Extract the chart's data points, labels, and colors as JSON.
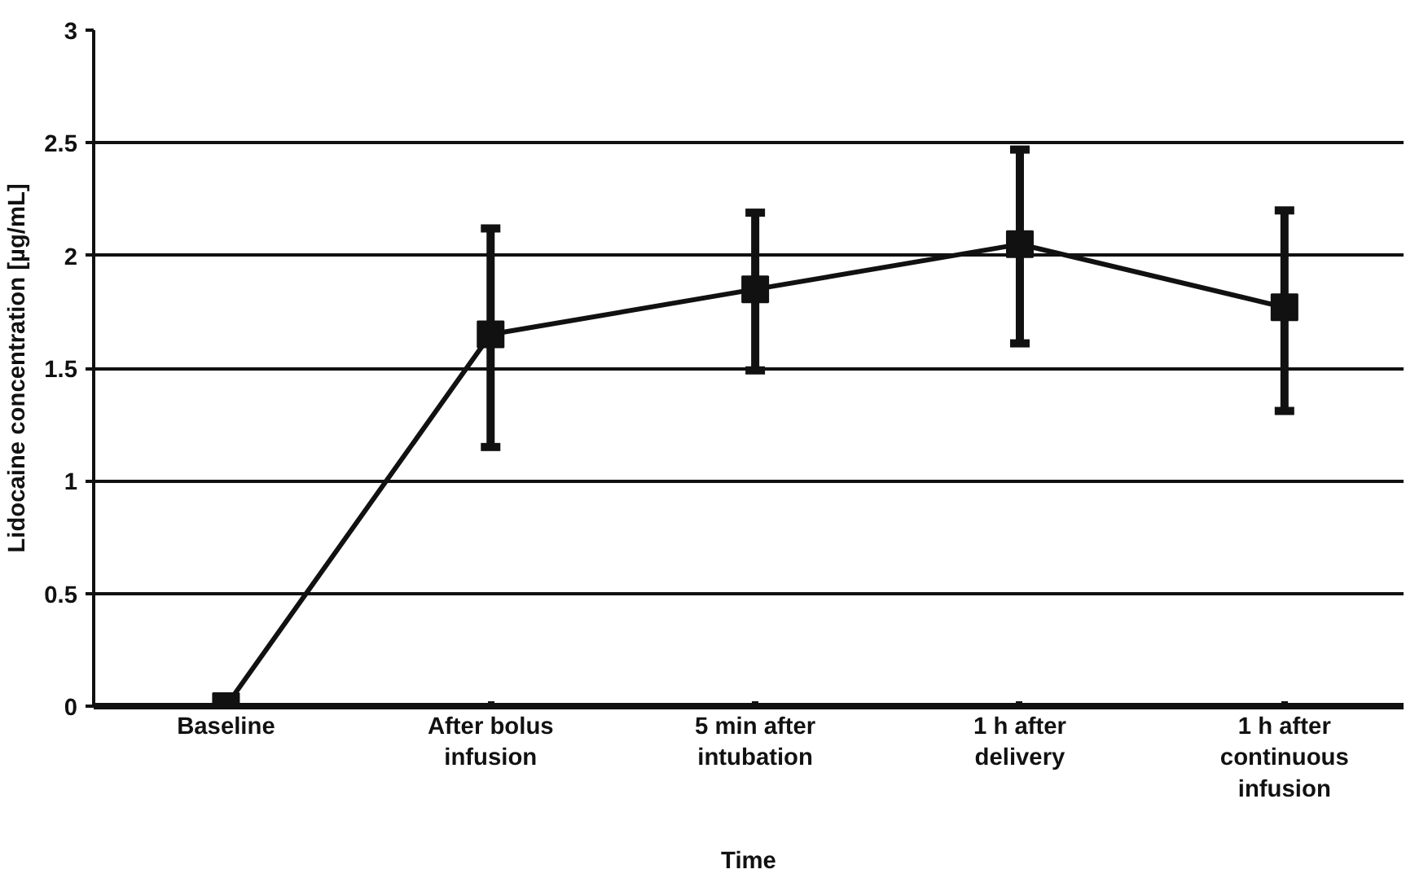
{
  "chart_data": {
    "type": "line",
    "xlabel": "Time",
    "ylabel": "Lidocaine concentration [µg/mL]",
    "categories": [
      "Baseline",
      "After bolus infusion",
      "5 min after intubation",
      "1 h after delivery",
      "1 h after continuous infusion"
    ],
    "series": [
      {
        "color": "#111111",
        "values": [
          0,
          1.65,
          1.85,
          2.05,
          1.77
        ],
        "errors": [
          null,
          [
            1.15,
            2.12
          ],
          [
            1.49,
            2.19
          ],
          [
            1.61,
            2.47
          ],
          [
            1.31,
            2.2
          ]
        ]
      }
    ],
    "ylim": [
      0,
      3
    ],
    "yticks": [
      0,
      0.5,
      1,
      1.5,
      2,
      2.5,
      3
    ],
    "grid": "y",
    "marker": "square",
    "line_style": "solid"
  }
}
